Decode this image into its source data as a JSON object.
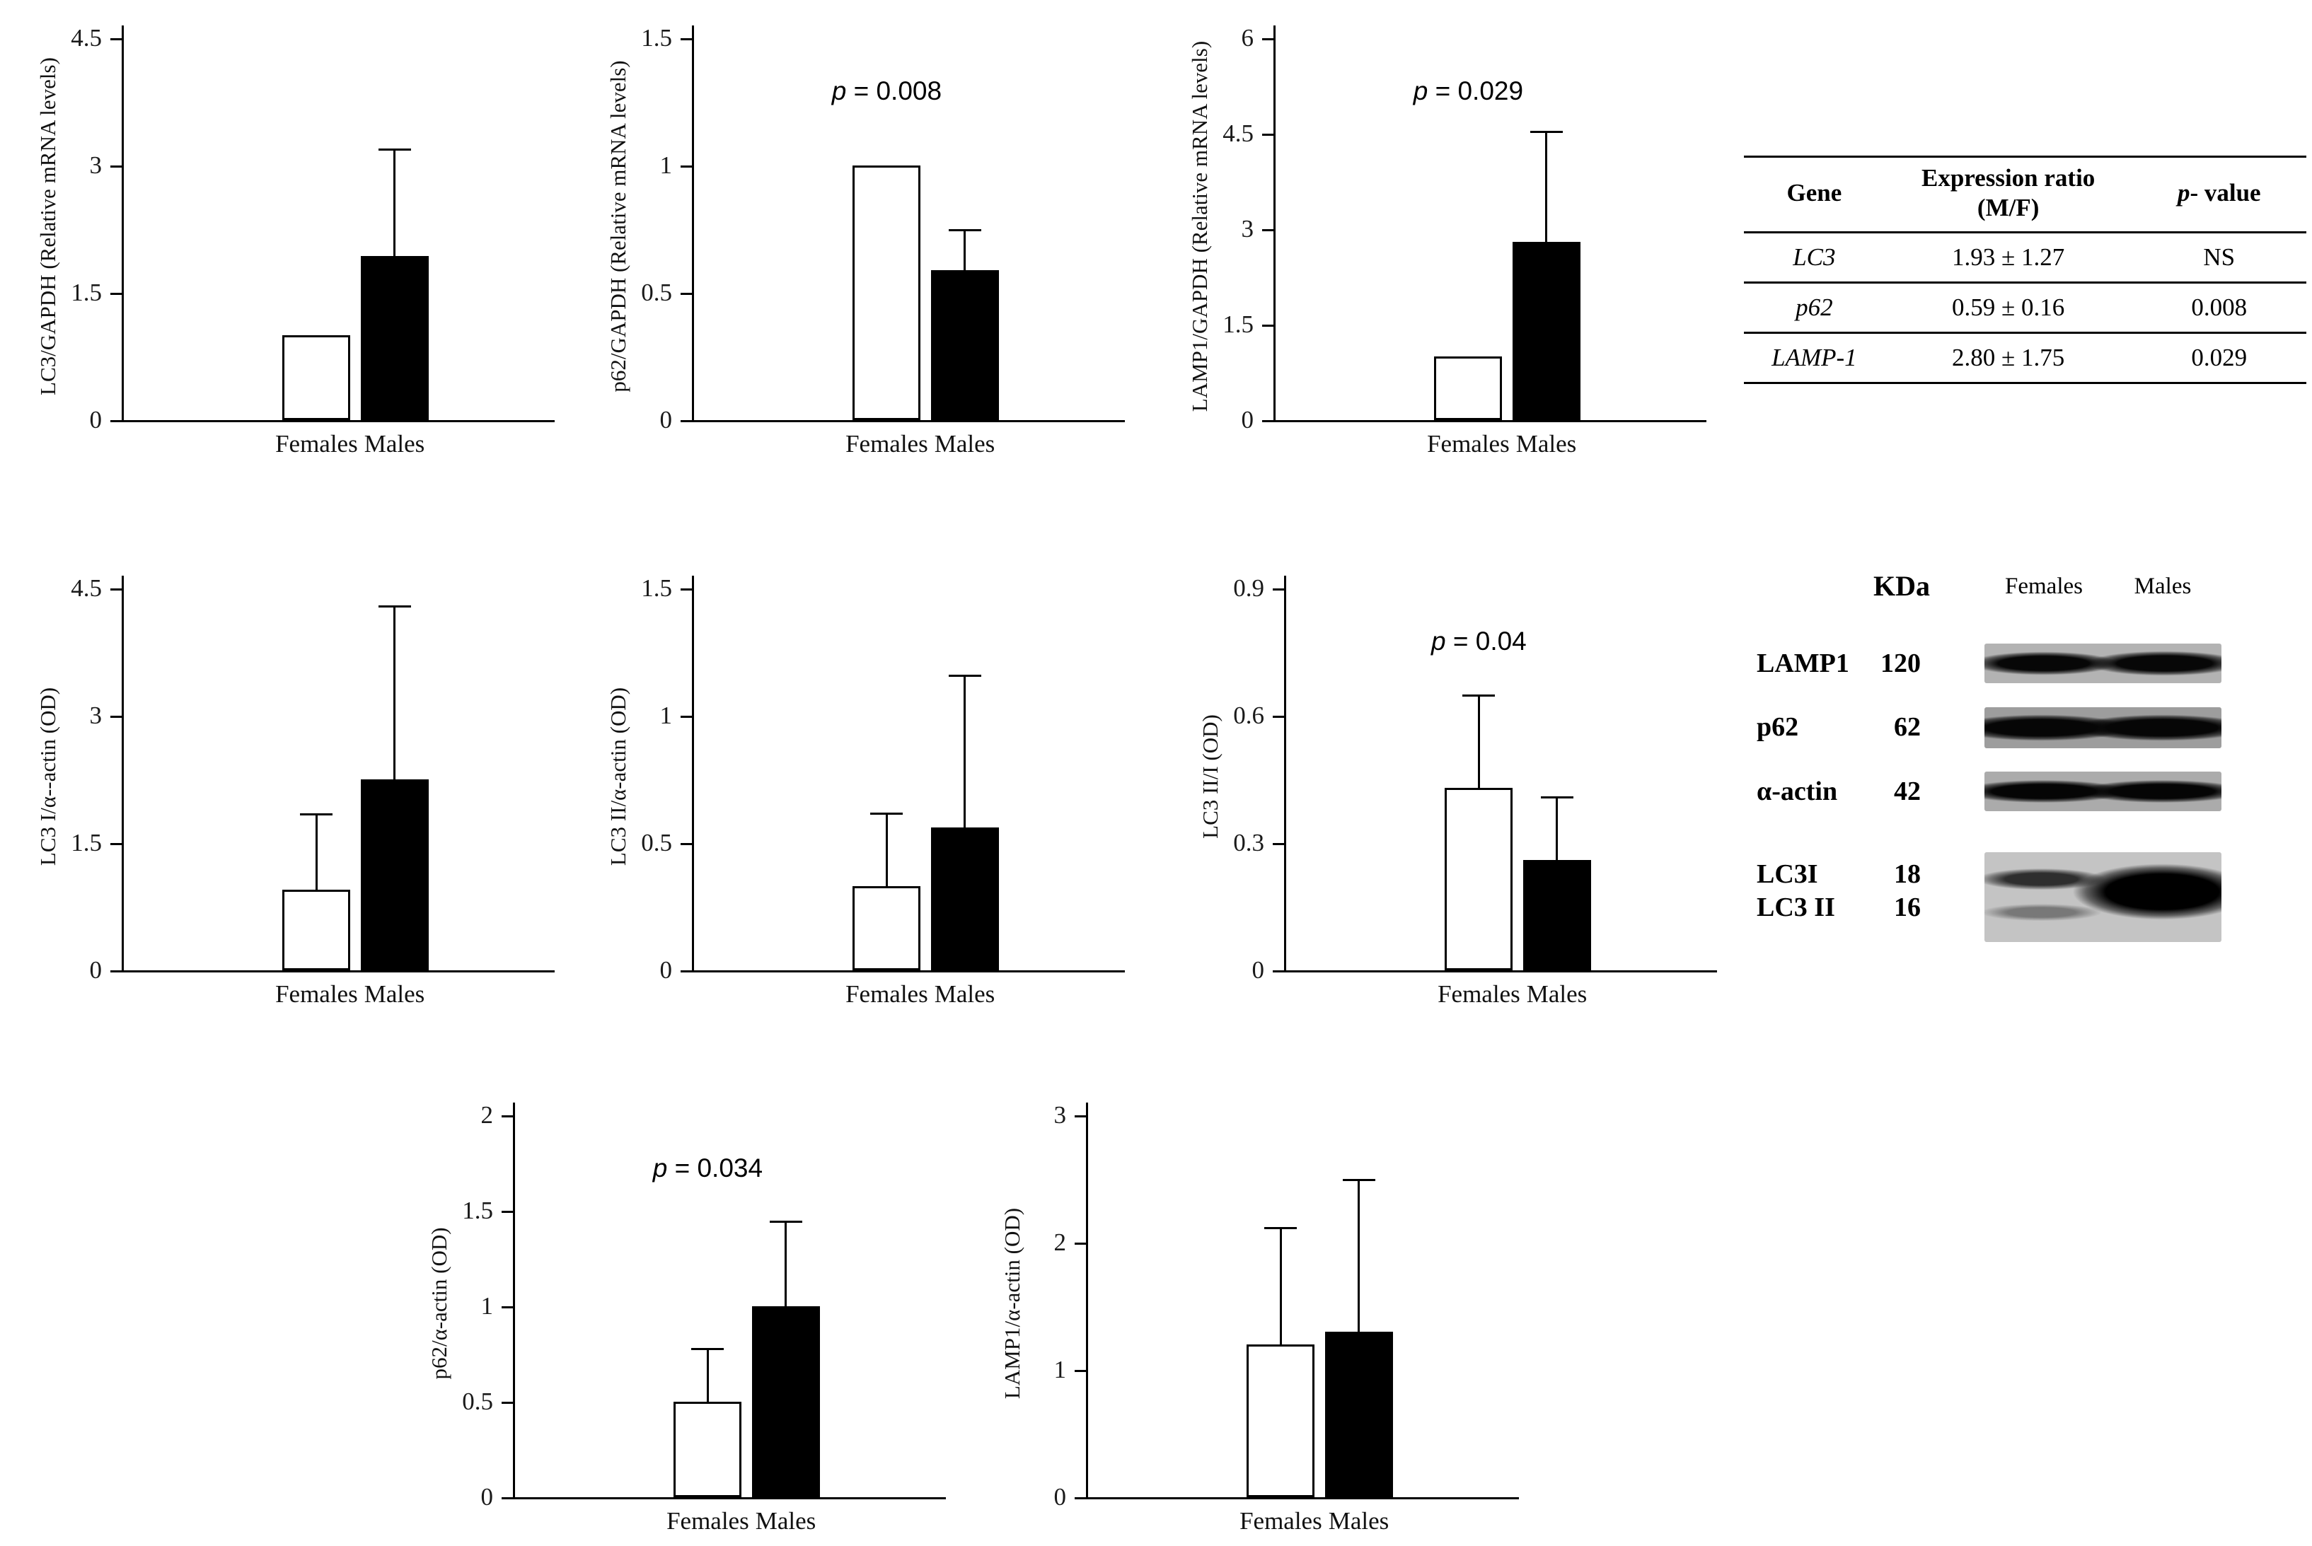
{
  "chart_data": [
    {
      "type": "bar",
      "id": "lc3-gapdh-mrna",
      "ylabel": "LC3/GAPDH (Relative mRNA levels)",
      "ymax": 4.5,
      "yticks": [
        0,
        1.5,
        3,
        4.5
      ],
      "categories": [
        "Females",
        "Males"
      ],
      "values": [
        1.0,
        1.93
      ],
      "errors_up": [
        0,
        1.27
      ],
      "bar_colors": [
        "#ffffff",
        "#000000"
      ],
      "p_label": ""
    },
    {
      "type": "bar",
      "id": "p62-gapdh-mrna",
      "ylabel": "p62/GAPDH (Relative mRNA levels)",
      "ymax": 1.5,
      "yticks": [
        0,
        0.5,
        1,
        1.5
      ],
      "categories": [
        "Females",
        "Males"
      ],
      "values": [
        1.0,
        0.59
      ],
      "errors_up": [
        0,
        0.16
      ],
      "bar_colors": [
        "#ffffff",
        "#000000"
      ],
      "p_label": "p = 0.008"
    },
    {
      "type": "bar",
      "id": "lamp1-gapdh-mrna",
      "ylabel": "LAMP1/GAPDH (Relative mRNA levels)",
      "ymax": 6,
      "yticks": [
        0,
        1.5,
        3,
        4.5,
        6
      ],
      "categories": [
        "Females",
        "Males"
      ],
      "values": [
        1.0,
        2.8
      ],
      "errors_up": [
        0,
        1.75
      ],
      "bar_colors": [
        "#ffffff",
        "#000000"
      ],
      "p_label": "p = 0.029"
    },
    {
      "type": "bar",
      "id": "lc3i-alpha-actin-od",
      "ylabel": "LC3 I/α--actin (OD)",
      "ymax": 4.5,
      "yticks": [
        0,
        1.5,
        3,
        4.5
      ],
      "categories": [
        "Females",
        "Males"
      ],
      "values": [
        0.95,
        2.25
      ],
      "errors_up": [
        0.9,
        2.05
      ],
      "bar_colors": [
        "#ffffff",
        "#000000"
      ],
      "p_label": ""
    },
    {
      "type": "bar",
      "id": "lc3ii-alpha-actin-od",
      "ylabel": "LC3 II/α-actin (OD)",
      "ymax": 1.5,
      "yticks": [
        0,
        0.5,
        1,
        1.5
      ],
      "categories": [
        "Females",
        "Males"
      ],
      "values": [
        0.33,
        0.56
      ],
      "errors_up": [
        0.29,
        0.6
      ],
      "bar_colors": [
        "#ffffff",
        "#000000"
      ],
      "p_label": ""
    },
    {
      "type": "bar",
      "id": "lc3-ii-i-od",
      "ylabel": "LC3 II/I (OD)",
      "ymax": 0.9,
      "yticks": [
        0,
        0.3,
        0.6,
        0.9
      ],
      "categories": [
        "Females",
        "Males"
      ],
      "values": [
        0.43,
        0.26
      ],
      "errors_up": [
        0.22,
        0.15
      ],
      "bar_colors": [
        "#ffffff",
        "#000000"
      ],
      "p_label": "p = 0.04"
    },
    {
      "type": "bar",
      "id": "p62-alpha-actin-od",
      "ylabel": "p62/α-actin (OD)",
      "ymax": 2,
      "yticks": [
        0,
        0.5,
        1,
        1.5,
        2
      ],
      "categories": [
        "Females",
        "Males"
      ],
      "values": [
        0.5,
        1.0
      ],
      "errors_up": [
        0.28,
        0.45
      ],
      "bar_colors": [
        "#ffffff",
        "#000000"
      ],
      "p_label": "p = 0.034"
    },
    {
      "type": "bar",
      "id": "lamp1-alpha-actin-od",
      "ylabel": "LAMP1/α-actin (OD)",
      "ymax": 3,
      "yticks": [
        0,
        1,
        2,
        3
      ],
      "categories": [
        "Females",
        "Males"
      ],
      "values": [
        1.2,
        1.3
      ],
      "errors_up": [
        0.92,
        1.2
      ],
      "bar_colors": [
        "#ffffff",
        "#000000"
      ],
      "p_label": ""
    }
  ],
  "table": {
    "headers": [
      "Gene",
      "Expression ratio",
      "p- value"
    ],
    "header_line2": "(M/F)",
    "rows": [
      [
        "LC3",
        "1.93 ± 1.27",
        "NS"
      ],
      [
        "p62",
        "0.59 ± 0.16",
        "0.008"
      ],
      [
        "LAMP-1",
        "2.80 ± 1.75",
        "0.029"
      ]
    ]
  },
  "blot": {
    "kda_header": "KDa",
    "col_headers": [
      "Females",
      "Males"
    ],
    "rows": [
      {
        "protein": "LAMP1",
        "kda": "120"
      },
      {
        "protein": "p62",
        "kda": "62"
      },
      {
        "protein": "α-actin",
        "kda": "42"
      },
      {
        "protein": "LC3I",
        "kda": "18"
      },
      {
        "protein": "LC3 II",
        "kda": "16"
      }
    ]
  }
}
